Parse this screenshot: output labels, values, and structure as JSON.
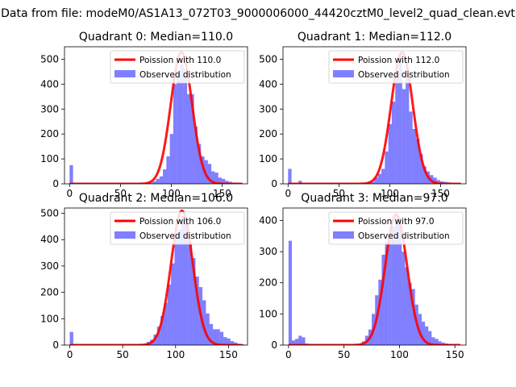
{
  "figure": {
    "suptitle": "Data from file: modeM0/AS1A13_072T03_9000006000_44420cztM0_level2_quad_clean.evt"
  },
  "colors": {
    "hist": "#0000ff",
    "hist_alpha": 0.5,
    "curve": "#ff0000",
    "axes": "#000000",
    "legend_border": "#cccccc"
  },
  "chart_data": [
    {
      "type": "bar",
      "title": "Quadrant 0: Median=110.0",
      "xlim": [
        -5,
        175
      ],
      "ylim": [
        0,
        550
      ],
      "xticks": [
        0,
        50,
        100,
        150
      ],
      "yticks": [
        0,
        100,
        200,
        300,
        400,
        500
      ],
      "legend": {
        "placement": "upper right",
        "entries": [
          "Poission with 110.0",
          "Observed distribution"
        ]
      },
      "bin_width": 3.4,
      "bins": [
        [
          0,
          75
        ],
        [
          3.4,
          3
        ],
        [
          6.8,
          1
        ],
        [
          10.2,
          3
        ],
        [
          13.6,
          3
        ],
        [
          17,
          2
        ],
        [
          20.4,
          2
        ],
        [
          23.8,
          1
        ],
        [
          27.2,
          1
        ],
        [
          30.6,
          1
        ],
        [
          34,
          1
        ],
        [
          37.4,
          1
        ],
        [
          40.8,
          1
        ],
        [
          44.2,
          1
        ],
        [
          47.6,
          1
        ],
        [
          51,
          1
        ],
        [
          54.4,
          1
        ],
        [
          57.8,
          1
        ],
        [
          61.2,
          1
        ],
        [
          64.6,
          1
        ],
        [
          68,
          1
        ],
        [
          71.4,
          2
        ],
        [
          74.8,
          3
        ],
        [
          78.2,
          5
        ],
        [
          81.6,
          10
        ],
        [
          85,
          20
        ],
        [
          88.4,
          30
        ],
        [
          91.8,
          58
        ],
        [
          95.2,
          110
        ],
        [
          98.6,
          200
        ],
        [
          102,
          400
        ],
        [
          105.4,
          440
        ],
        [
          108.8,
          480
        ],
        [
          112.2,
          460
        ],
        [
          115.6,
          360
        ],
        [
          119,
          360
        ],
        [
          122.4,
          230
        ],
        [
          125.8,
          160
        ],
        [
          129.2,
          110
        ],
        [
          132.6,
          95
        ],
        [
          136,
          80
        ],
        [
          139.4,
          50
        ],
        [
          142.8,
          45
        ],
        [
          146.2,
          25
        ],
        [
          149.6,
          20
        ],
        [
          153,
          12
        ],
        [
          156.4,
          8
        ],
        [
          159.8,
          5
        ],
        [
          163.2,
          5
        ],
        [
          166.6,
          3
        ]
      ],
      "poisson_mean": 110.0,
      "poisson_peak": 528
    },
    {
      "type": "bar",
      "title": "Quadrant 1: Median=112.0",
      "xlim": [
        -5,
        175
      ],
      "ylim": [
        0,
        550
      ],
      "xticks": [
        0,
        50,
        100,
        150
      ],
      "yticks": [
        0,
        100,
        200,
        300,
        400,
        500
      ],
      "legend": {
        "placement": "upper right",
        "entries": [
          "Poission with 112.0",
          "Observed distribution"
        ]
      },
      "bin_width": 3.4,
      "bins": [
        [
          0,
          60
        ],
        [
          3.4,
          2
        ],
        [
          6.8,
          1
        ],
        [
          10.2,
          12
        ],
        [
          13.6,
          3
        ],
        [
          17,
          2
        ],
        [
          20.4,
          2
        ],
        [
          23.8,
          1
        ],
        [
          27.2,
          1
        ],
        [
          30.6,
          1
        ],
        [
          34,
          1
        ],
        [
          37.4,
          1
        ],
        [
          40.8,
          1
        ],
        [
          44.2,
          1
        ],
        [
          47.6,
          1
        ],
        [
          51,
          1
        ],
        [
          54.4,
          1
        ],
        [
          57.8,
          1
        ],
        [
          61.2,
          1
        ],
        [
          64.6,
          1
        ],
        [
          68,
          1
        ],
        [
          71.4,
          2
        ],
        [
          74.8,
          3
        ],
        [
          78.2,
          5
        ],
        [
          81.6,
          8
        ],
        [
          85,
          25
        ],
        [
          88.4,
          40
        ],
        [
          91.8,
          60
        ],
        [
          95.2,
          130
        ],
        [
          98.6,
          240
        ],
        [
          102,
          330
        ],
        [
          105.4,
          430
        ],
        [
          108.8,
          520
        ],
        [
          112.2,
          380
        ],
        [
          115.6,
          460
        ],
        [
          119,
          290
        ],
        [
          122.4,
          220
        ],
        [
          125.8,
          180
        ],
        [
          129.2,
          120
        ],
        [
          132.6,
          70
        ],
        [
          136,
          50
        ],
        [
          139.4,
          35
        ],
        [
          142.8,
          25
        ],
        [
          146.2,
          15
        ],
        [
          149.6,
          10
        ],
        [
          153,
          8
        ],
        [
          156.4,
          6
        ],
        [
          159.8,
          3
        ],
        [
          163.2,
          2
        ],
        [
          166.6,
          2
        ]
      ],
      "poisson_mean": 112.0,
      "poisson_peak": 528
    },
    {
      "type": "bar",
      "title": "Quadrant 2: Median=106.0",
      "xlim": [
        -5,
        168
      ],
      "ylim": [
        0,
        520
      ],
      "xticks": [
        0,
        50,
        100,
        150
      ],
      "yticks": [
        0,
        100,
        200,
        300,
        400,
        500
      ],
      "legend": {
        "placement": "upper right",
        "entries": [
          "Poission with 106.0",
          "Observed distribution"
        ]
      },
      "bin_width": 3.3,
      "bins": [
        [
          0,
          50
        ],
        [
          3.3,
          3
        ],
        [
          6.6,
          1
        ],
        [
          9.9,
          2
        ],
        [
          13.2,
          2
        ],
        [
          16.5,
          1
        ],
        [
          19.8,
          1
        ],
        [
          23.1,
          1
        ],
        [
          26.4,
          1
        ],
        [
          29.7,
          1
        ],
        [
          33,
          1
        ],
        [
          36.3,
          1
        ],
        [
          39.6,
          1
        ],
        [
          42.9,
          1
        ],
        [
          46.2,
          1
        ],
        [
          49.5,
          1
        ],
        [
          52.8,
          1
        ],
        [
          56.1,
          1
        ],
        [
          59.4,
          1
        ],
        [
          62.7,
          1
        ],
        [
          66,
          3
        ],
        [
          69.3,
          5
        ],
        [
          72.6,
          12
        ],
        [
          75.9,
          20
        ],
        [
          79.2,
          40
        ],
        [
          82.5,
          70
        ],
        [
          85.8,
          110
        ],
        [
          89.1,
          160
        ],
        [
          92.4,
          230
        ],
        [
          95.7,
          310
        ],
        [
          99,
          410
        ],
        [
          102.3,
          440
        ],
        [
          105.6,
          490
        ],
        [
          108.9,
          460
        ],
        [
          112.2,
          390
        ],
        [
          115.5,
          330
        ],
        [
          118.8,
          260
        ],
        [
          122.1,
          220
        ],
        [
          125.4,
          170
        ],
        [
          128.7,
          120
        ],
        [
          132,
          80
        ],
        [
          135.3,
          60
        ],
        [
          138.6,
          60
        ],
        [
          141.9,
          50
        ],
        [
          145.2,
          30
        ],
        [
          148.5,
          25
        ],
        [
          151.8,
          15
        ],
        [
          155.1,
          10
        ],
        [
          158.4,
          5
        ],
        [
          161.7,
          3
        ]
      ],
      "poisson_mean": 106.0,
      "poisson_peak": 510
    },
    {
      "type": "bar",
      "title": "Quadrant 3: Median=97.0",
      "xlim": [
        -5,
        160
      ],
      "ylim": [
        0,
        440
      ],
      "xticks": [
        0,
        50,
        100,
        150
      ],
      "yticks": [
        0,
        100,
        200,
        300,
        400
      ],
      "legend": {
        "placement": "upper right",
        "entries": [
          "Poission with 97.0",
          "Observed distribution"
        ]
      },
      "bin_width": 3.0,
      "bins": [
        [
          0,
          335
        ],
        [
          3,
          15
        ],
        [
          6,
          20
        ],
        [
          9,
          30
        ],
        [
          12,
          25
        ],
        [
          15,
          5
        ],
        [
          18,
          2
        ],
        [
          21,
          1
        ],
        [
          24,
          1
        ],
        [
          27,
          1
        ],
        [
          30,
          1
        ],
        [
          33,
          1
        ],
        [
          36,
          1
        ],
        [
          39,
          1
        ],
        [
          42,
          1
        ],
        [
          45,
          1
        ],
        [
          48,
          1
        ],
        [
          51,
          1
        ],
        [
          54,
          1
        ],
        [
          57,
          1
        ],
        [
          60,
          2
        ],
        [
          63,
          5
        ],
        [
          66,
          12
        ],
        [
          69,
          30
        ],
        [
          72,
          50
        ],
        [
          75,
          100
        ],
        [
          78,
          160
        ],
        [
          81,
          210
        ],
        [
          84,
          290
        ],
        [
          87,
          330
        ],
        [
          90,
          350
        ],
        [
          93,
          380
        ],
        [
          96,
          410
        ],
        [
          99,
          390
        ],
        [
          102,
          300
        ],
        [
          105,
          250
        ],
        [
          108,
          200
        ],
        [
          111,
          180
        ],
        [
          114,
          130
        ],
        [
          117,
          100
        ],
        [
          120,
          75
        ],
        [
          123,
          60
        ],
        [
          126,
          45
        ],
        [
          129,
          25
        ],
        [
          132,
          20
        ],
        [
          135,
          12
        ],
        [
          138,
          8
        ],
        [
          141,
          5
        ],
        [
          144,
          3
        ],
        [
          147,
          2
        ]
      ],
      "poisson_mean": 97.0,
      "poisson_peak": 420
    }
  ]
}
